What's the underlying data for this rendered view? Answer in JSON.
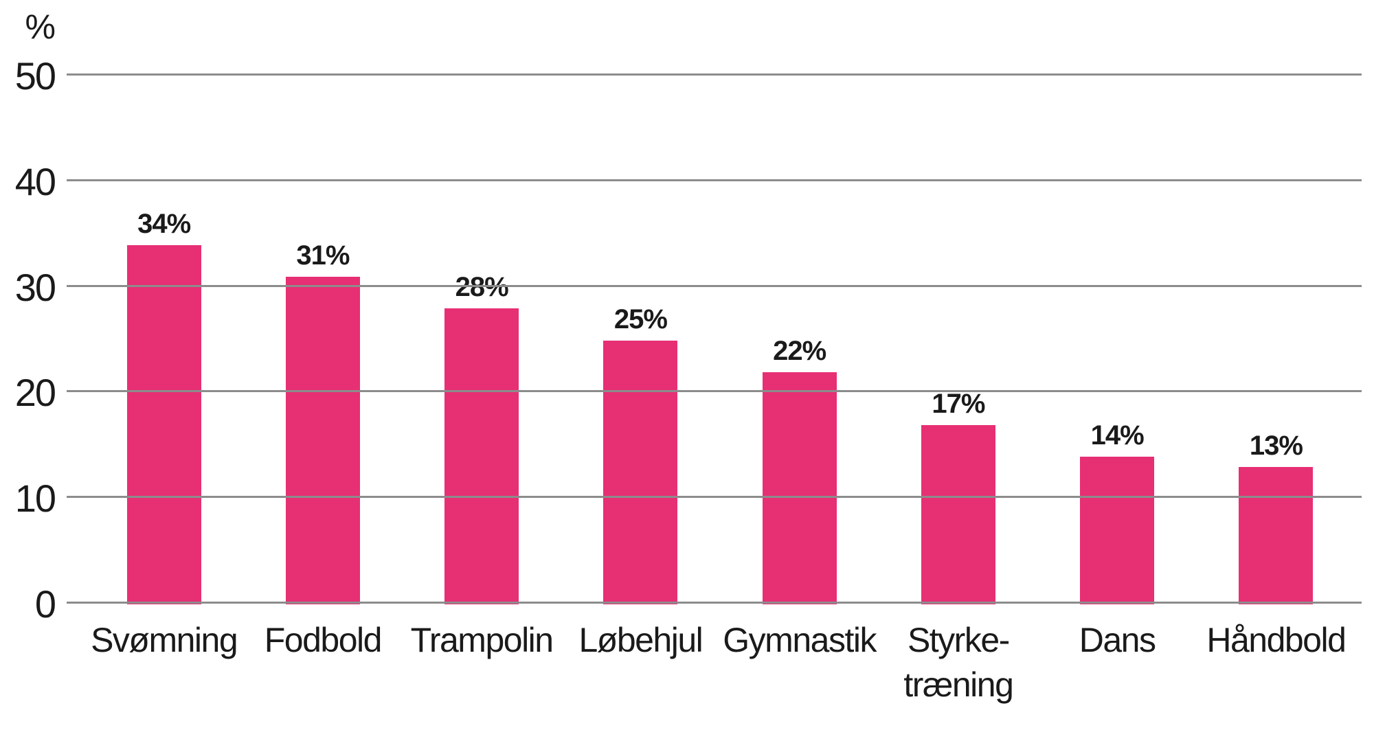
{
  "chart_data": {
    "type": "bar",
    "title": "",
    "unit_label": "%",
    "categories": [
      "Svømning",
      "Fodbold",
      "Trampolin",
      "Løbehjul",
      "Gymnastik",
      "Styrke-\ntræning",
      "Dans",
      "Håndbold"
    ],
    "values": [
      34,
      31,
      28,
      25,
      22,
      17,
      14,
      13
    ],
    "value_labels": [
      "34%",
      "31%",
      "28%",
      "25%",
      "22%",
      "17%",
      "14%",
      "13%"
    ],
    "xlabel": "",
    "ylabel": "%",
    "yticks": [
      0,
      10,
      20,
      30,
      40,
      50
    ],
    "ylim": [
      0,
      50
    ],
    "grid": "horizontal",
    "legend": "none",
    "bar_color": "#e72f74",
    "gridline_color": "#8c8c8c",
    "text_color": "#1a1a1a",
    "background_color": "#ffffff"
  }
}
